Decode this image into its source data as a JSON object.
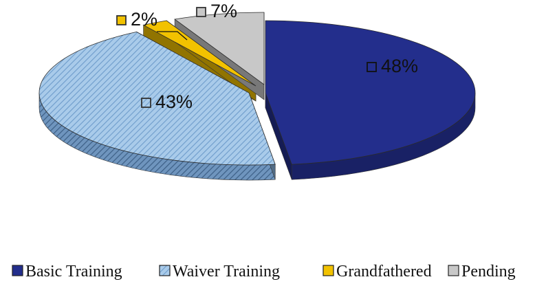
{
  "chart_data": {
    "type": "pie",
    "title": "",
    "legend_position": "bottom",
    "exploded": true,
    "three_d": true,
    "series": [
      {
        "name": "Basic Training",
        "value": 48,
        "label": "48%",
        "color": "#232E8C",
        "pattern": "solid"
      },
      {
        "name": "Waiver Training",
        "value": 43,
        "label": "43%",
        "color": "#8AB6E0",
        "pattern": "diagonal-hatch"
      },
      {
        "name": "Grandfathered",
        "value": 2,
        "label": "2%",
        "color": "#F2C200",
        "pattern": "solid"
      },
      {
        "name": "Pending",
        "value": 7,
        "label": "7%",
        "color": "#C8C8C8",
        "pattern": "solid"
      }
    ]
  }
}
